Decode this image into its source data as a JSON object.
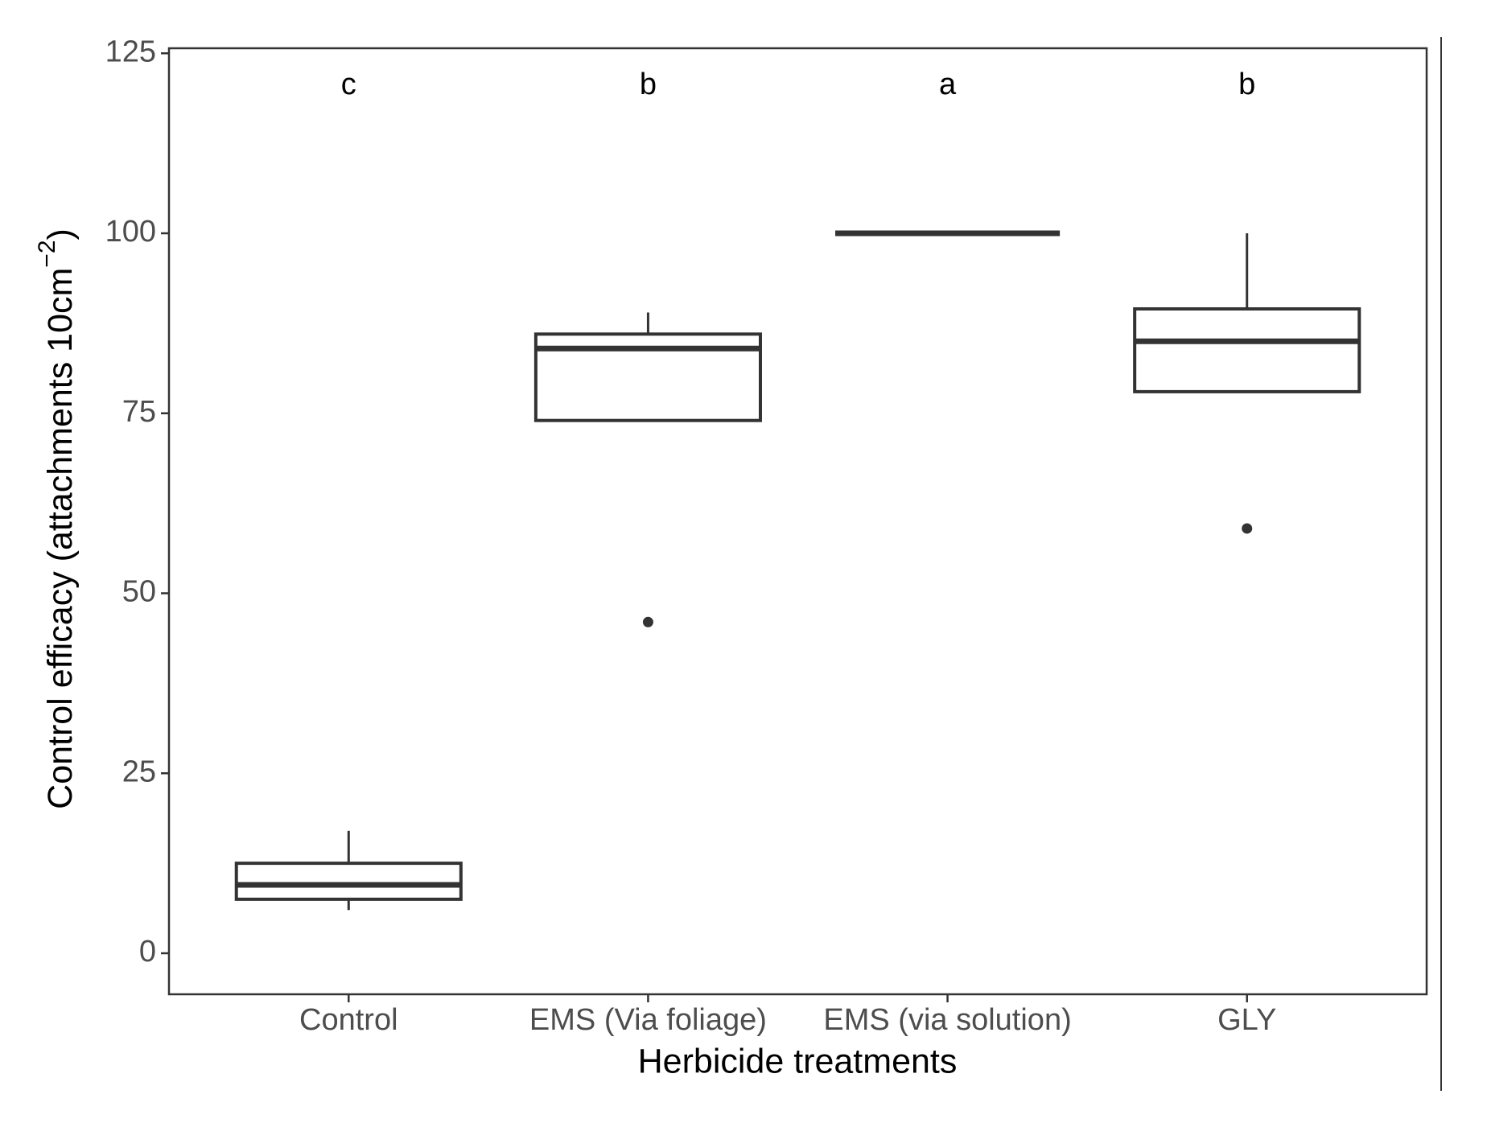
{
  "chart_data": {
    "type": "box",
    "x_label": "Herbicide treatments",
    "y_label": {
      "text": "Control efficacy (attachments 10cm",
      "superscript": "−2",
      "end": ")"
    },
    "categories": [
      "Control",
      "EMS (Via foliage)",
      "EMS (via solution)",
      "GLY"
    ],
    "letters": [
      "c",
      "b",
      "a",
      "b"
    ],
    "boxes": [
      {
        "whisker_low": 6,
        "q1": 7.5,
        "median": 9.5,
        "q3": 12.5,
        "whisker_high": 17,
        "outliers": []
      },
      {
        "whisker_low": 74,
        "q1": 74,
        "median": 84,
        "q3": 86,
        "whisker_high": 89,
        "outliers": [
          46
        ]
      },
      {
        "whisker_low": 100,
        "q1": 100,
        "median": 100,
        "q3": 100,
        "whisker_high": 100,
        "outliers": []
      },
      {
        "whisker_low": 78,
        "q1": 78,
        "median": 85,
        "q3": 89.5,
        "whisker_high": 100,
        "outliers": [
          59
        ]
      }
    ],
    "color": "#333333",
    "ylim": [
      -5.7,
      125.7
    ],
    "yticks": [
      0,
      25,
      50,
      75,
      100,
      125
    ],
    "grid": false
  }
}
